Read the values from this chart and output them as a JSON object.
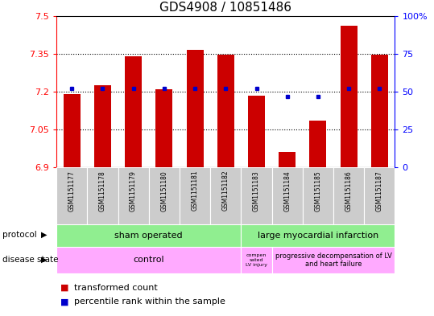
{
  "title": "GDS4908 / 10851486",
  "samples": [
    "GSM1151177",
    "GSM1151178",
    "GSM1151179",
    "GSM1151180",
    "GSM1151181",
    "GSM1151182",
    "GSM1151183",
    "GSM1151184",
    "GSM1151185",
    "GSM1151186",
    "GSM1151187"
  ],
  "bar_values": [
    7.19,
    7.225,
    7.34,
    7.21,
    7.365,
    7.345,
    7.185,
    6.96,
    7.085,
    7.46,
    7.345
  ],
  "percentile_values": [
    52,
    52,
    52,
    52,
    52,
    52,
    52,
    47,
    47,
    52,
    52
  ],
  "ymin": 6.9,
  "ymax": 7.5,
  "yticks": [
    6.9,
    7.05,
    7.2,
    7.35,
    7.5
  ],
  "right_yticks": [
    0,
    25,
    50,
    75,
    100
  ],
  "bar_color": "#cc0000",
  "percentile_color": "#0000cc",
  "background_color": "#ffffff",
  "title_fontsize": 11,
  "protocol_labels": [
    "sham operated",
    "large myocardial infarction"
  ],
  "protocol_split": 6,
  "protocol_color": "#90ee90",
  "disease_state_labels": [
    "control",
    "compen\nsated\nLV injury",
    "progressive decompensation of LV\nand heart failure"
  ],
  "disease_state_split1": 6,
  "disease_state_split2": 7,
  "disease_color": "#ffaaff",
  "sample_bg_color": "#cccccc"
}
